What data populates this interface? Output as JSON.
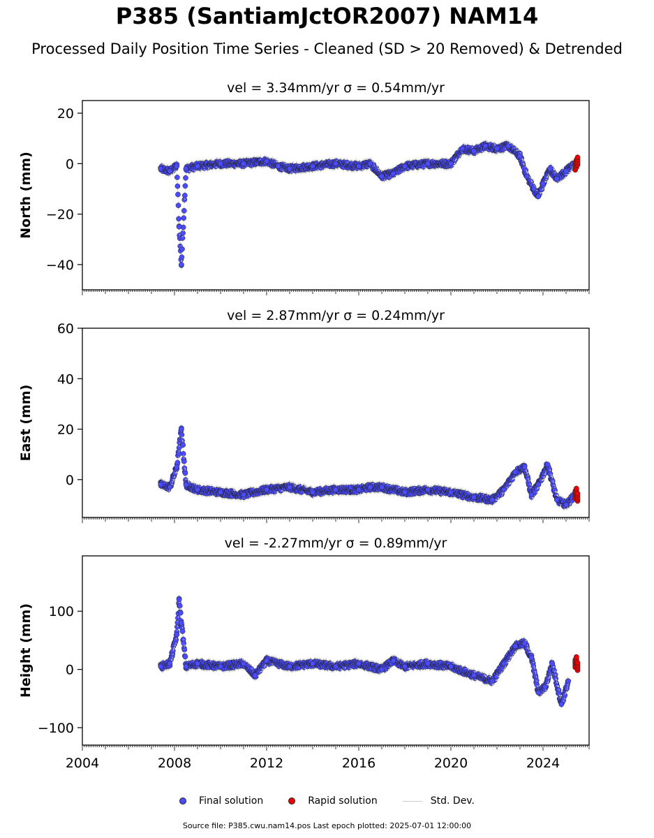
{
  "header": {
    "title": "P385 (SantiamJctOR2007) NAM14",
    "subtitle": "Processed Daily Position Time Series - Cleaned (SD > 20 Removed) & Detrended"
  },
  "legend": {
    "final": "Final solution",
    "rapid": "Rapid solution",
    "std": "Std. Dev."
  },
  "footer": "Source file: P385.cwu.nam14.pos  Last epoch plotted: 2025-07-01 12:00:00",
  "colors": {
    "final": "#4b4bff",
    "rapid": "#ee0000",
    "std": "#cccccc"
  },
  "chart_data": [
    {
      "type": "scatter",
      "title": "vel = 3.34mm/yr   σ = 0.54mm/yr",
      "ylabel": "North (mm)",
      "xlim": [
        2004,
        2026
      ],
      "ylim": [
        -50,
        25
      ],
      "yticks": [
        -40,
        -20,
        0,
        20
      ],
      "x_range_data": [
        2007.4,
        2025.5
      ],
      "series": [
        {
          "name": "Final solution",
          "x": [
            2007.4,
            2007.8,
            2008.1,
            2008.2,
            2008.3,
            2008.5,
            2009.0,
            2010.0,
            2011.0,
            2012.0,
            2012.5,
            2013.0,
            2014.0,
            2015.0,
            2016.0,
            2016.5,
            2017.0,
            2017.5,
            2018.0,
            2019.0,
            2020.0,
            2020.5,
            2021.0,
            2021.5,
            2022.0,
            2022.5,
            2023.0,
            2023.3,
            2023.6,
            2023.8,
            2024.0,
            2024.3,
            2024.6,
            2025.0,
            2025.3
          ],
          "y": [
            -2,
            -3,
            -1,
            -25,
            -40,
            -2,
            -1,
            0,
            0,
            1,
            -1,
            -2,
            -1,
            0,
            -1,
            0,
            -5,
            -4,
            -1,
            0,
            0,
            6,
            5,
            7,
            6,
            7,
            3,
            -5,
            -10,
            -13,
            -8,
            -2,
            -6,
            -3,
            0
          ]
        },
        {
          "name": "Rapid solution",
          "x": [
            2025.4,
            2025.45,
            2025.5
          ],
          "y": [
            -1,
            0,
            1
          ]
        }
      ]
    },
    {
      "type": "scatter",
      "title": "vel = 2.87mm/yr   σ = 0.24mm/yr",
      "ylabel": "East (mm)",
      "xlim": [
        2004,
        2026
      ],
      "ylim": [
        -15,
        60
      ],
      "yticks": [
        0,
        20,
        40,
        60
      ],
      "x_range_data": [
        2007.4,
        2025.5
      ],
      "series": [
        {
          "name": "Final solution",
          "x": [
            2007.4,
            2007.8,
            2008.1,
            2008.3,
            2008.5,
            2009.0,
            2010.0,
            2011.0,
            2012.0,
            2013.0,
            2014.0,
            2015.0,
            2016.0,
            2016.5,
            2017.0,
            2018.0,
            2019.0,
            2020.0,
            2021.0,
            2021.8,
            2022.3,
            2022.8,
            2023.2,
            2023.5,
            2023.8,
            2024.2,
            2024.6,
            2025.0,
            2025.3
          ],
          "y": [
            -2,
            -3,
            5,
            20,
            -2,
            -4,
            -5,
            -6,
            -4,
            -3,
            -5,
            -4,
            -4,
            -3,
            -3,
            -5,
            -4,
            -5,
            -7,
            -8,
            -4,
            3,
            5,
            -6,
            -2,
            6,
            -8,
            -10,
            -7
          ]
        },
        {
          "name": "Rapid solution",
          "x": [
            2025.4,
            2025.45,
            2025.5
          ],
          "y": [
            -6,
            -5,
            -7
          ]
        }
      ]
    },
    {
      "type": "scatter",
      "title": "vel = -2.27mm/yr   σ = 0.89mm/yr",
      "ylabel": "Height (mm)",
      "xlabel_ticks": [
        "2004",
        "2008",
        "2012",
        "2016",
        "2020",
        "2024"
      ],
      "xlim": [
        2004,
        2026
      ],
      "ylim": [
        -130,
        195
      ],
      "yticks": [
        -100,
        0,
        100
      ],
      "x_range_data": [
        2007.4,
        2025.5
      ],
      "series": [
        {
          "name": "Final solution",
          "x": [
            2007.4,
            2007.8,
            2008.1,
            2008.2,
            2008.3,
            2008.5,
            2009.0,
            2010.0,
            2011.0,
            2011.5,
            2012.0,
            2013.0,
            2014.0,
            2015.0,
            2016.0,
            2017.0,
            2017.5,
            2018.0,
            2019.0,
            2020.0,
            2021.0,
            2021.8,
            2022.3,
            2022.8,
            2023.2,
            2023.5,
            2023.8,
            2024.1,
            2024.4,
            2024.8,
            2025.1
          ],
          "y": [
            5,
            10,
            60,
            120,
            80,
            5,
            10,
            5,
            10,
            -10,
            15,
            5,
            10,
            5,
            10,
            0,
            15,
            5,
            10,
            5,
            -10,
            -20,
            10,
            40,
            45,
            20,
            -40,
            -30,
            10,
            -60,
            -20
          ]
        },
        {
          "name": "Rapid solution",
          "x": [
            2025.4,
            2025.45,
            2025.5
          ],
          "y": [
            10,
            15,
            5
          ]
        }
      ]
    }
  ]
}
